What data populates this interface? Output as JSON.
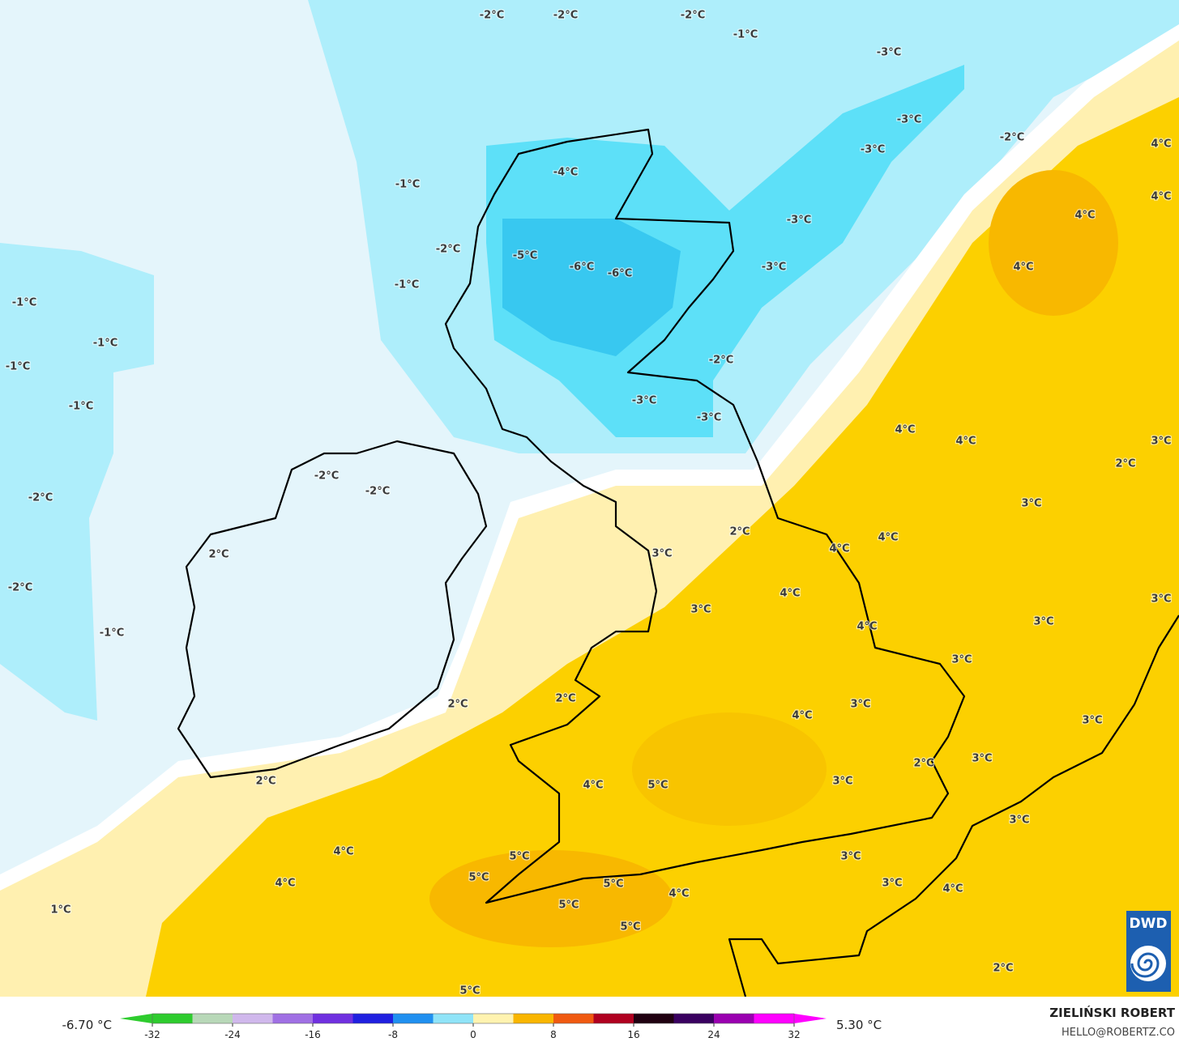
{
  "map": {
    "labels": [
      "-2°C",
      "-2°C",
      "-2°C",
      "-1°C",
      "-3°C",
      "-3°C",
      "-3°C",
      "-2°C",
      "4°C",
      "4°C",
      "4°C",
      "4°C",
      "-4°C",
      "-1°C",
      "-2°C",
      "-5°C",
      "-6°C",
      "-6°C",
      "-3°C",
      "-3°C",
      "-1°C",
      "-1°C",
      "-1°C",
      "-1°C",
      "-2°C",
      "-1°C",
      "-3°C",
      "-3°C",
      "4°C",
      "4°C",
      "3°C",
      "2°C",
      "-2°C",
      "-2°C",
      "-2°C",
      "3°C",
      "2°C",
      "4°C",
      "4°C",
      "3°C",
      "2°C",
      "-2°C",
      "4°C",
      "3°C",
      "3°C",
      "3°C",
      "4°C",
      "-1°C",
      "3°C",
      "2°C",
      "2°C",
      "3°C",
      "4°C",
      "3°C",
      "2°C",
      "3°C",
      "4°C",
      "5°C",
      "3°C",
      "2°C",
      "3°C",
      "4°C",
      "3°C",
      "5°C",
      "5°C",
      "4°C",
      "3°C",
      "5°C",
      "4°C",
      "4°C",
      "5°C",
      "1°C",
      "5°C",
      "2°C",
      "5°C"
    ]
  },
  "colorbar": {
    "min_label": "-6.70 °C",
    "max_label": "5.30 °C",
    "range": [
      -32,
      32
    ],
    "ticks": [
      -32,
      -24,
      -16,
      -8,
      0,
      8,
      16,
      24,
      32
    ],
    "colors": [
      "#2ecc2e",
      "#b8d8b8",
      "#d0b8ec",
      "#a070e4",
      "#7030e0",
      "#2020e0",
      "#2090f0",
      "#90e4f8",
      "#fff3b0",
      "#f9b600",
      "#f05a10",
      "#b00020",
      "#200010",
      "#3a0060",
      "#9a00b0",
      "#ff00ff"
    ]
  },
  "credit": {
    "author": "ZIELIŃSKI ROBERT",
    "email": "HELLO@ROBERTZ.CO"
  },
  "logo": "DWD"
}
